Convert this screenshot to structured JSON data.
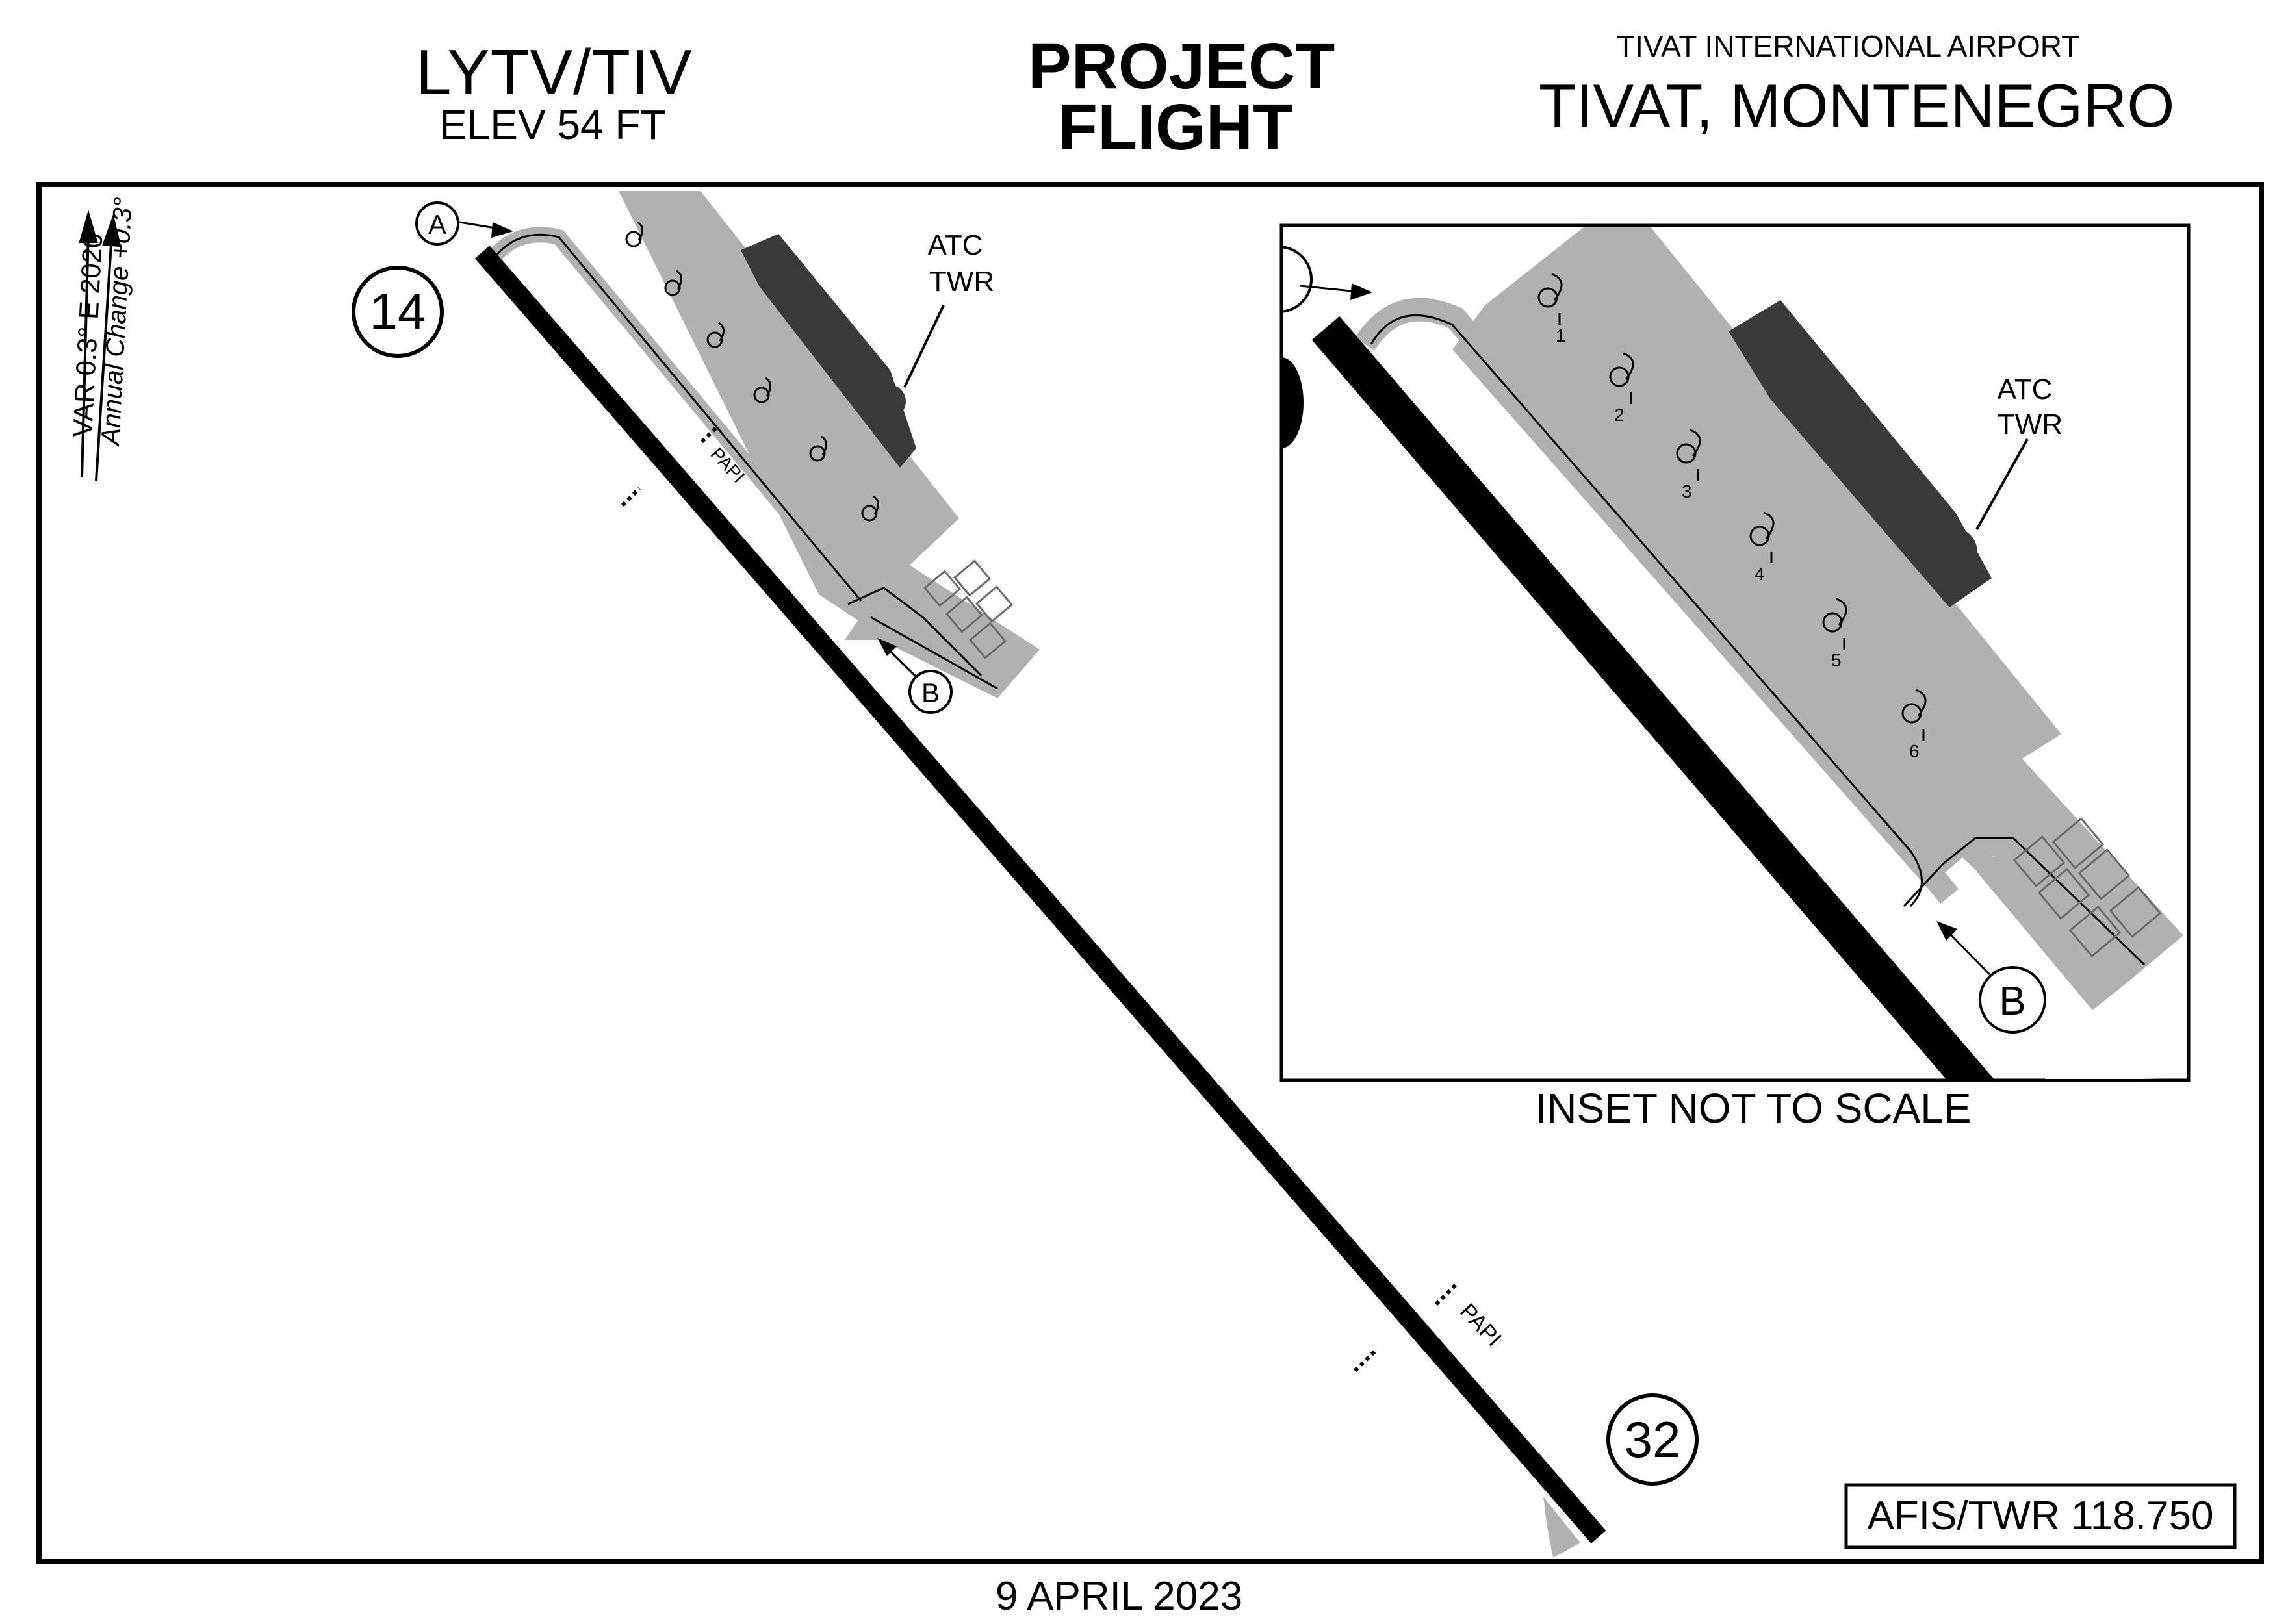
{
  "header": {
    "ident": "LYTV/TIV",
    "elevation": "ELEV 54 FT",
    "brand_line1": "PROJECT",
    "brand_line2": "FLIGHT",
    "airport_name": "TIVAT INTERNATIONAL AIRPORT",
    "location": "TIVAT, MONTENEGRO"
  },
  "variation": {
    "line1": "VAR  0.3° E 2020",
    "line2": "Annual Change +0.3°"
  },
  "runway": {
    "end_north": "14",
    "end_south": "32",
    "papi_label": "PAPI"
  },
  "taxiways": {
    "a": "A",
    "b": "B"
  },
  "tower": {
    "line1": "ATC",
    "line2": "TWR"
  },
  "inset": {
    "caption": "INSET NOT TO SCALE",
    "stands": [
      "1",
      "2",
      "3",
      "4",
      "5",
      "6"
    ]
  },
  "frequency": "AFIS/TWR 118.750",
  "date": "9 APRIL 2023",
  "colors": {
    "apron": "#b1b1b1",
    "building": "#3a3a3a",
    "runway": "#000000"
  }
}
